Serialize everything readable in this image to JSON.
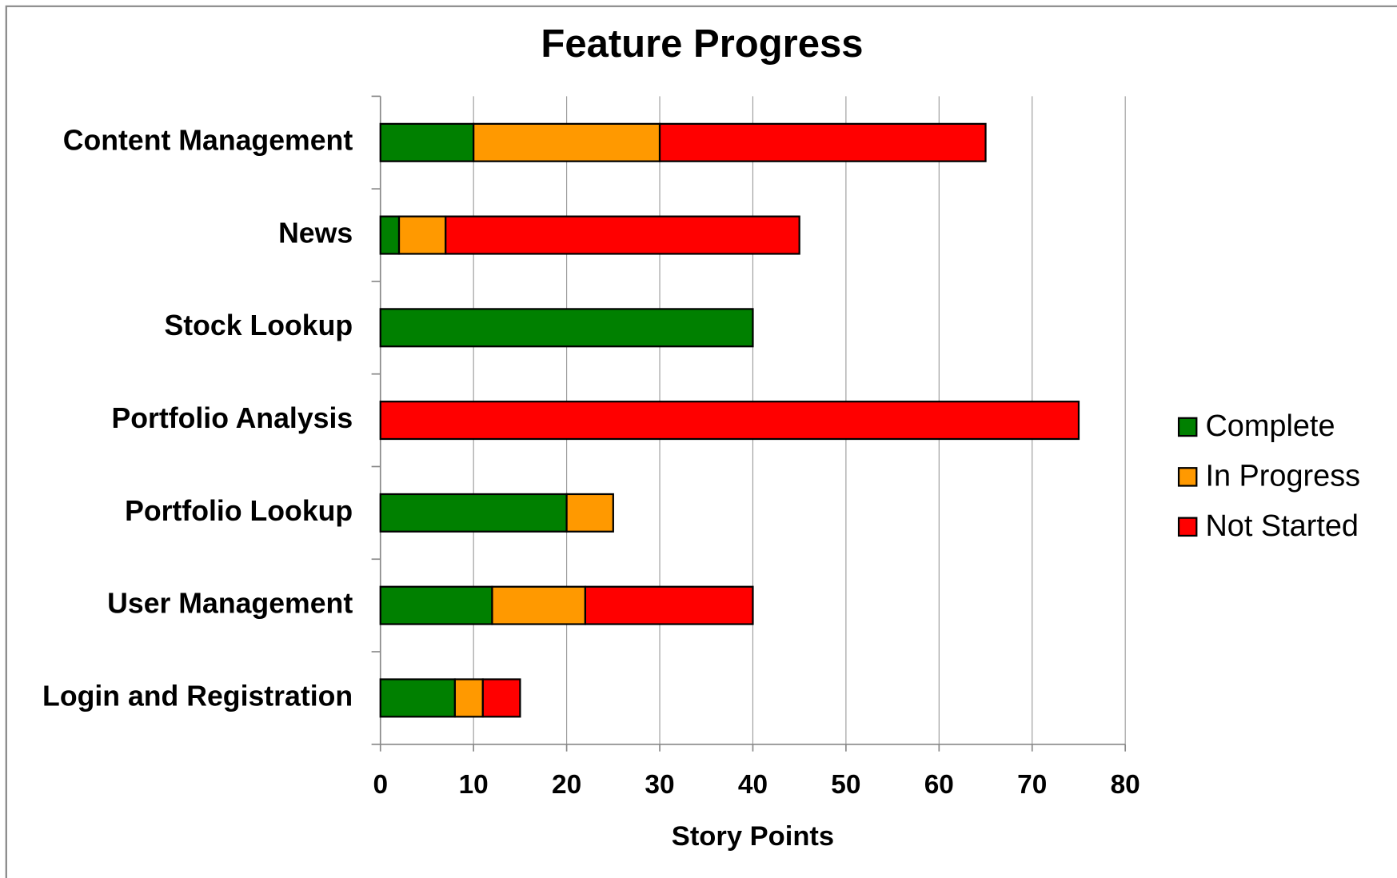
{
  "chart_data": {
    "type": "stacked_bar_horizontal",
    "title": "Feature Progress",
    "categories": [
      "Content Management",
      "News",
      "Stock Lookup",
      "Portfolio Analysis",
      "Portfolio Lookup",
      "User Management",
      "Login and Registration"
    ],
    "series": [
      {
        "name": "Complete",
        "color": "#008000",
        "values": [
          10,
          2,
          40,
          0,
          20,
          12,
          8
        ]
      },
      {
        "name": "In Progress",
        "color": "#ff9900",
        "values": [
          20,
          5,
          0,
          0,
          5,
          10,
          3
        ]
      },
      {
        "name": "Not Started",
        "color": "#ff0000",
        "values": [
          35,
          38,
          0,
          75,
          0,
          18,
          4
        ]
      }
    ],
    "x_label": "Story Points",
    "xlim": [
      0,
      80
    ],
    "xticks": [
      0,
      10,
      20,
      30,
      40,
      50,
      60,
      70,
      80
    ],
    "grid": true,
    "legend": "right"
  }
}
